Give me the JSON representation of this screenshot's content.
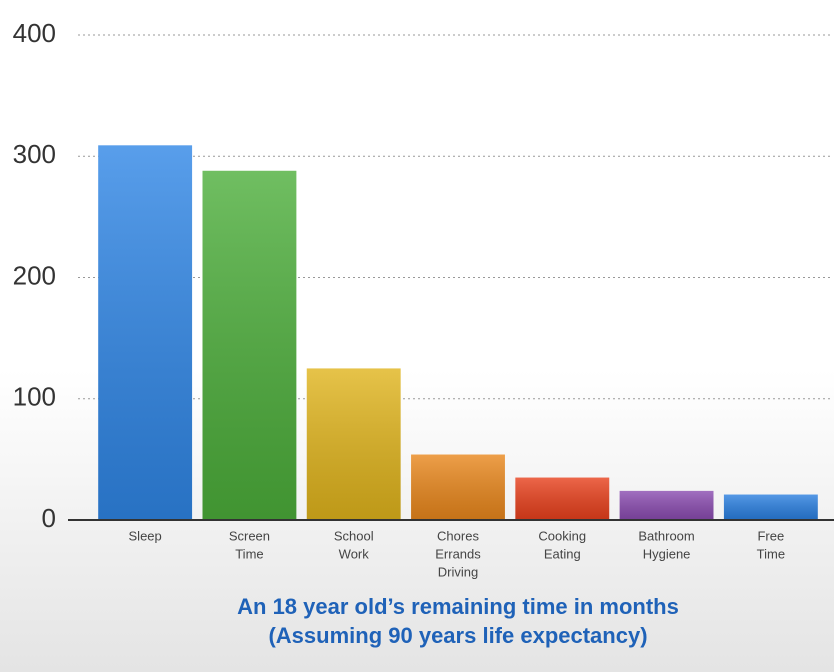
{
  "chart_data": {
    "type": "bar",
    "title": "An 18 year old’s remaining time in months",
    "subtitle": "(Assuming 90 years life expectancy)",
    "categories": [
      [
        "Sleep"
      ],
      [
        "Screen",
        "Time"
      ],
      [
        "School",
        "Work"
      ],
      [
        "Chores",
        "Errands",
        "Driving"
      ],
      [
        "Cooking",
        "Eating"
      ],
      [
        "Bathroom",
        "Hygiene"
      ],
      [
        "Free",
        "Time"
      ]
    ],
    "values": [
      309,
      288,
      125,
      54,
      35,
      24,
      21
    ],
    "colors": [
      "#2f86e6",
      "#4cae3a",
      "#e0b41c",
      "#e9871c",
      "#e8401c",
      "#8a4bb0",
      "#2a7fe0"
    ],
    "ylim": [
      0,
      400
    ],
    "yticks": [
      0,
      100,
      200,
      300,
      400
    ],
    "grid": true
  }
}
